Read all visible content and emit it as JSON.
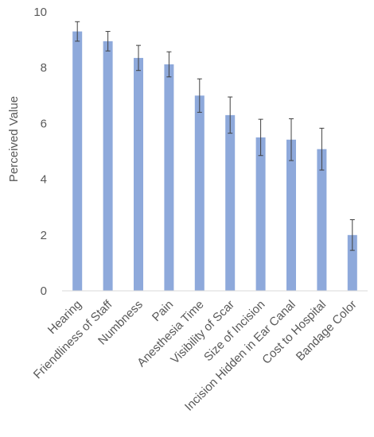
{
  "chart_data": {
    "type": "bar",
    "ylabel": "Perceived Value",
    "xlabel": "",
    "title": "",
    "ylim": [
      0,
      10
    ],
    "yticks": [
      0,
      2,
      4,
      6,
      8,
      10
    ],
    "grid": false,
    "legend": "none",
    "bar_color": "#8EA9DB",
    "error_bar_color": "#404040",
    "categories": [
      "Hearing",
      "Friendliness of Staff",
      "Numbness",
      "Pain",
      "Anesthesia Time",
      "Visibility of Scar",
      "Size of Incision",
      "Incision Hidden in Ear Canal",
      "Cost to Hospital",
      "Bandage Color"
    ],
    "values": [
      9.3,
      8.95,
      8.35,
      8.12,
      7.0,
      6.3,
      5.5,
      5.42,
      5.08,
      2.0
    ],
    "errors": [
      0.35,
      0.35,
      0.45,
      0.45,
      0.6,
      0.65,
      0.65,
      0.75,
      0.75,
      0.55
    ]
  }
}
